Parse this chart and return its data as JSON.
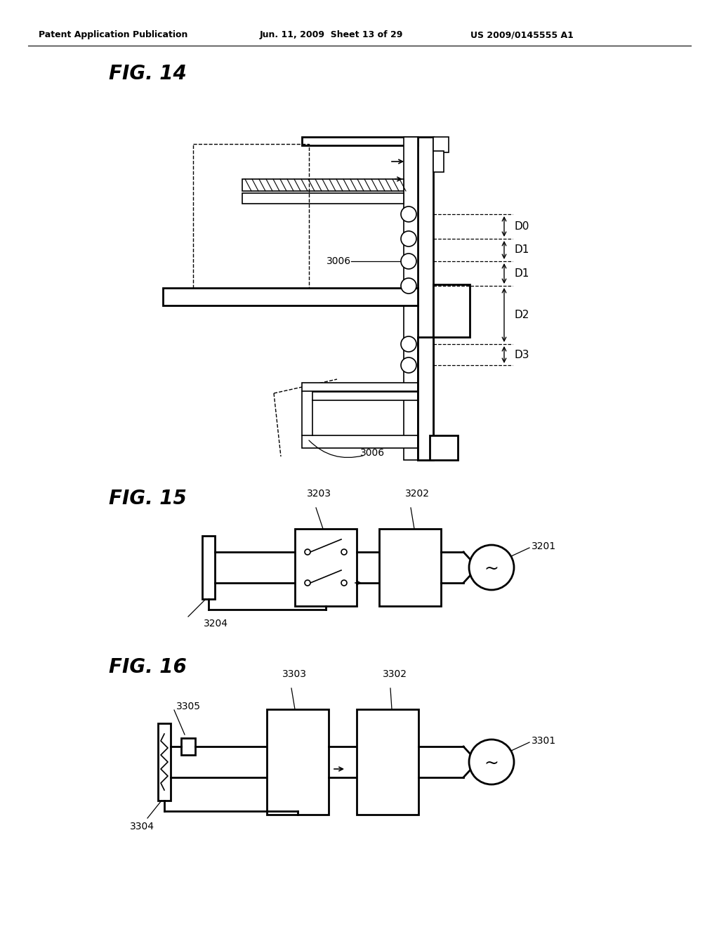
{
  "background_color": "#ffffff",
  "header_left": "Patent Application Publication",
  "header_mid": "Jun. 11, 2009  Sheet 13 of 29",
  "header_right": "US 2009/0145555 A1",
  "fig14_title": "FIG. 14",
  "fig15_title": "FIG. 15",
  "fig16_title": "FIG. 16",
  "label_3006_1": "3006",
  "label_3006_2": "3006",
  "label_D0": "D0",
  "label_D1a": "D1",
  "label_D1b": "D1",
  "label_D2": "D2",
  "label_D3": "D3",
  "label_3201": "3201",
  "label_3202": "3202",
  "label_3203": "3203",
  "label_3204": "3204",
  "label_3301": "3301",
  "label_3302": "3302",
  "label_3303": "3303",
  "label_3304": "3304",
  "label_3305": "3305"
}
